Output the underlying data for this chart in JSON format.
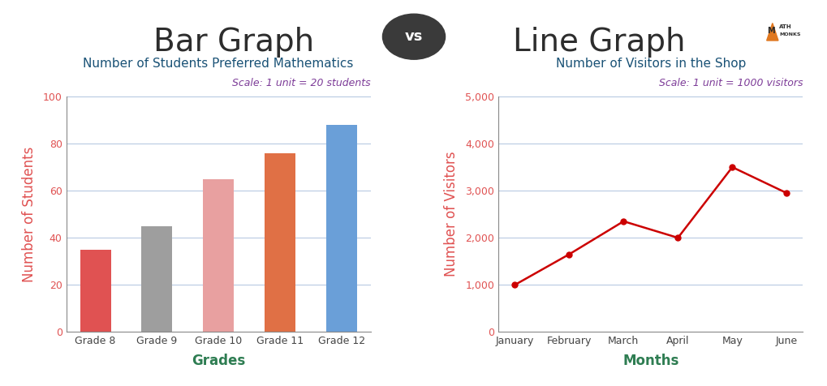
{
  "title_left": "Bar Graph",
  "title_vs": "vs",
  "title_right": "Line Graph",
  "title_fontsize": 28,
  "title_color": "#2d2d2d",
  "title_vs_bg": "#3a3a3a",
  "title_vs_color": "#ffffff",
  "bar_subtitle": "Number of Students Preferred Mathematics",
  "bar_subtitle_color": "#1a5276",
  "bar_scale_text": "Scale: 1 unit = 20 students",
  "bar_scale_color": "#7d3c98",
  "bar_categories": [
    "Grade 8",
    "Grade 9",
    "Grade 10",
    "Grade 11",
    "Grade 12"
  ],
  "bar_values": [
    35,
    45,
    65,
    76,
    88
  ],
  "bar_colors": [
    "#e05252",
    "#9e9e9e",
    "#e8a0a0",
    "#e07045",
    "#6a9fd8"
  ],
  "bar_xlabel": "Grades",
  "bar_ylabel": "Number of Students",
  "bar_xlabel_color": "#2e7d52",
  "bar_ylabel_color": "#e05252",
  "bar_ylim": [
    0,
    100
  ],
  "bar_yticks": [
    0,
    20,
    40,
    60,
    80,
    100
  ],
  "bar_tick_color": "#e05252",
  "bar_grid_color": "#b0c4de",
  "line_subtitle": "Number of Visitors in the Shop",
  "line_subtitle_color": "#1a5276",
  "line_scale_text": "Scale: 1 unit = 1000 visitors",
  "line_scale_color": "#7d3c98",
  "line_categories": [
    "January",
    "February",
    "March",
    "April",
    "May",
    "June"
  ],
  "line_values": [
    1000,
    1650,
    2350,
    2000,
    3500,
    2950
  ],
  "line_color": "#cc0000",
  "line_xlabel": "Months",
  "line_ylabel": "Number of Visitors",
  "line_xlabel_color": "#2e7d52",
  "line_ylabel_color": "#e05252",
  "line_ylim": [
    0,
    5000
  ],
  "line_yticks": [
    0,
    1000,
    2000,
    3000,
    4000,
    5000
  ],
  "line_yticklabels": [
    "0",
    "1,000",
    "2,000",
    "3,000",
    "4,000",
    "5,000"
  ],
  "line_tick_color": "#e05252",
  "line_grid_color": "#b0c4de",
  "bg_color": "#ffffff",
  "axis_color": "#888888",
  "tick_label_fontsize": 9,
  "axis_label_fontsize": 12,
  "subtitle_fontsize": 11,
  "scale_fontsize": 9
}
